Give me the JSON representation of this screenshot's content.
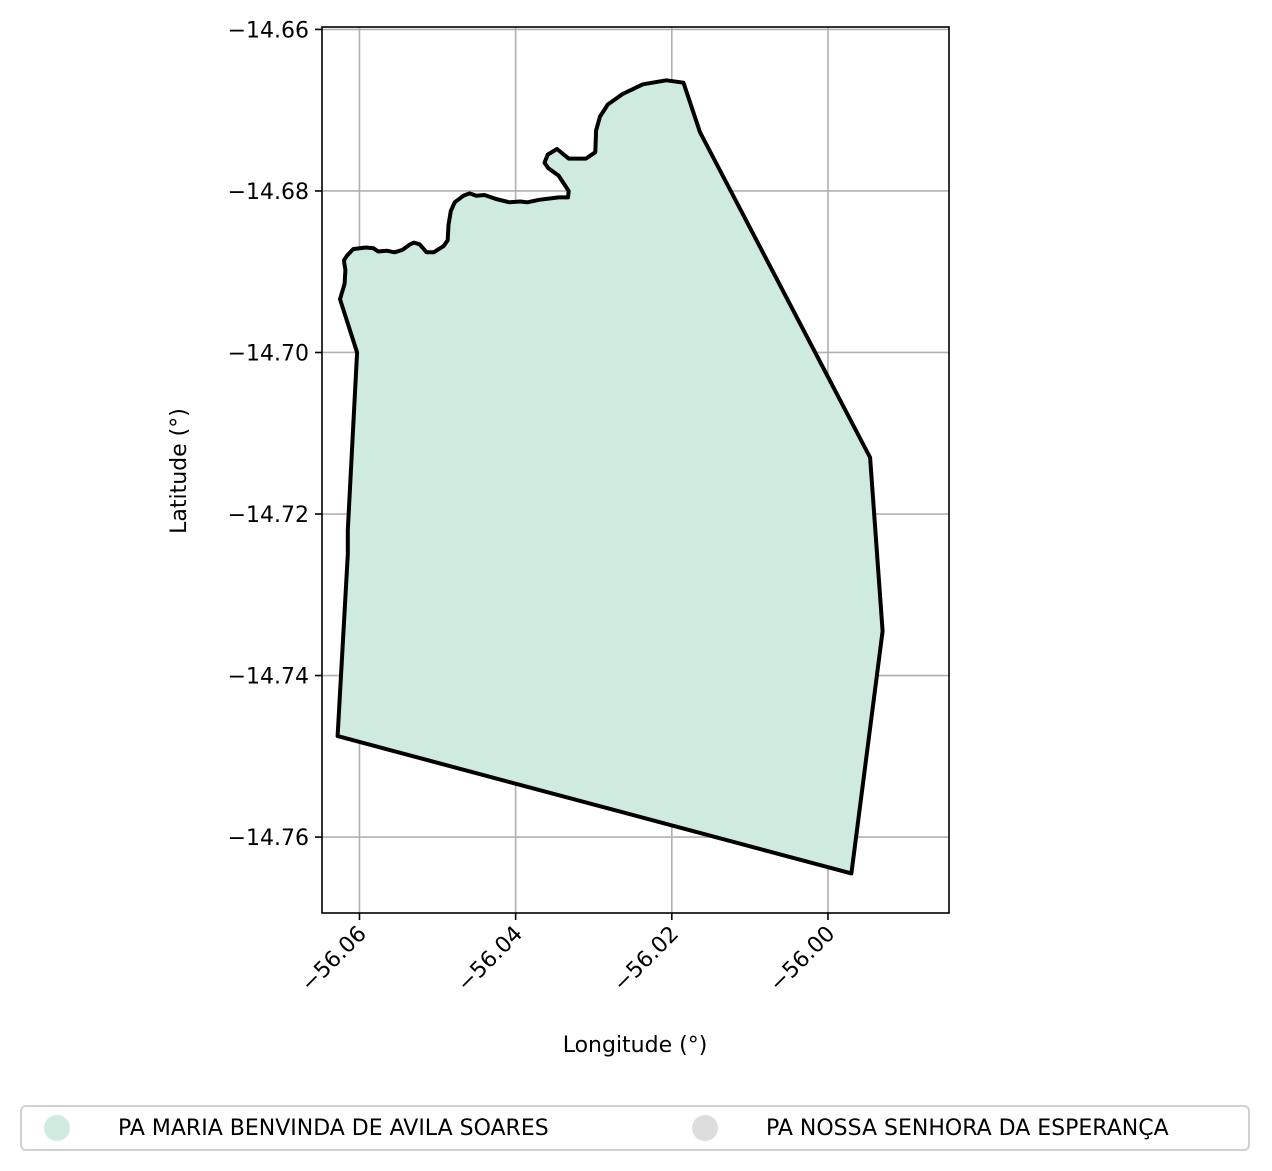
{
  "chart_data": {
    "type": "map",
    "title": "",
    "xlabel": "Longitude (°)",
    "ylabel": "Latitude (°)",
    "xlim": [
      -56.0648,
      -55.9845
    ],
    "ylim": [
      -14.7694,
      -14.6597
    ],
    "grid": true,
    "x_ticks": [
      -56.06,
      -56.04,
      -56.02,
      -56.0
    ],
    "x_tick_labels": [
      "−56.06",
      "−56.04",
      "−56.02",
      "−56.00"
    ],
    "y_ticks": [
      -14.66,
      -14.68,
      -14.7,
      -14.72,
      -14.74,
      -14.76
    ],
    "y_tick_labels": [
      "−14.66",
      "−14.68",
      "−14.70",
      "−14.72",
      "−14.74",
      "−14.76"
    ],
    "polygons": [
      {
        "name": "PA MARIA BENVINDA DE AVILA SOARES",
        "fill": "#cfebdf",
        "edge": "#000000",
        "coordinates": [
          [
            -56.0625,
            -14.6934
          ],
          [
            -56.0619,
            -14.6915
          ],
          [
            -56.0618,
            -14.6898
          ],
          [
            -56.062,
            -14.6886
          ],
          [
            -56.0616,
            -14.688
          ],
          [
            -56.0608,
            -14.6872
          ],
          [
            -56.0592,
            -14.687
          ],
          [
            -56.0582,
            -14.6871
          ],
          [
            -56.0576,
            -14.6875
          ],
          [
            -56.0565,
            -14.6874
          ],
          [
            -56.0555,
            -14.6876
          ],
          [
            -56.0545,
            -14.6873
          ],
          [
            -56.0535,
            -14.6866
          ],
          [
            -56.053,
            -14.6864
          ],
          [
            -56.0523,
            -14.6866
          ],
          [
            -56.0514,
            -14.6876
          ],
          [
            -56.0505,
            -14.6876
          ],
          [
            -56.0492,
            -14.6868
          ],
          [
            -56.0487,
            -14.6861
          ],
          [
            -56.0486,
            -14.6842
          ],
          [
            -56.0483,
            -14.6825
          ],
          [
            -56.0478,
            -14.6814
          ],
          [
            -56.0467,
            -14.6806
          ],
          [
            -56.0459,
            -14.6803
          ],
          [
            -56.045,
            -14.6806
          ],
          [
            -56.044,
            -14.6805
          ],
          [
            -56.0425,
            -14.681
          ],
          [
            -56.0408,
            -14.6814
          ],
          [
            -56.0394,
            -14.6813
          ],
          [
            -56.0385,
            -14.6814
          ],
          [
            -56.037,
            -14.6811
          ],
          [
            -56.0345,
            -14.6808
          ],
          [
            -56.0333,
            -14.6808
          ],
          [
            -56.0332,
            -14.68
          ],
          [
            -56.0345,
            -14.6781
          ],
          [
            -56.0358,
            -14.6772
          ],
          [
            -56.0363,
            -14.6765
          ],
          [
            -56.0359,
            -14.6755
          ],
          [
            -56.0347,
            -14.6748
          ],
          [
            -56.0332,
            -14.676
          ],
          [
            -56.031,
            -14.676
          ],
          [
            -56.0298,
            -14.6752
          ],
          [
            -56.0297,
            -14.6725
          ],
          [
            -56.0292,
            -14.6708
          ],
          [
            -56.0282,
            -14.6693
          ],
          [
            -56.0263,
            -14.668
          ],
          [
            -56.0237,
            -14.6668
          ],
          [
            -56.0207,
            -14.6663
          ],
          [
            -56.0185,
            -14.6666
          ],
          [
            -56.0164,
            -14.6727
          ],
          [
            -55.9946,
            -14.713
          ],
          [
            -55.993,
            -14.7345
          ],
          [
            -55.997,
            -14.7645
          ],
          [
            -56.0628,
            -14.7475
          ],
          [
            -56.0615,
            -14.725
          ],
          [
            -56.0615,
            -14.722
          ],
          [
            -56.0605,
            -14.7035
          ],
          [
            -56.0603,
            -14.7
          ],
          [
            -56.0625,
            -14.6934
          ]
        ]
      }
    ],
    "legend_placement": "bottom",
    "legend": [
      {
        "label": "PA MARIA BENVINDA DE AVILA SOARES",
        "color": "#cfebdf"
      },
      {
        "label": "PA NOSSA SENHORA DA ESPERANÇA",
        "color": "#dddddd"
      }
    ]
  }
}
